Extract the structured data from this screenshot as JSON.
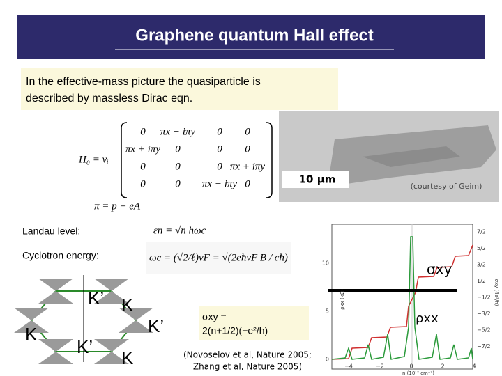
{
  "title": "Graphene quantum Hall effect",
  "intro": [
    "In the effective-mass picture the quasiparticle is",
    "described by massless Dirac eqn."
  ],
  "hamiltonian": {
    "lhs": "H₀ = vᵢ",
    "matrix": [
      [
        "0",
        "πx − iπy",
        "0",
        "0"
      ],
      [
        "πx + iπy",
        "0",
        "0",
        "0"
      ],
      [
        "0",
        "0",
        "0",
        "πx + iπy"
      ],
      [
        "0",
        "0",
        "πx − iπy",
        "0"
      ]
    ],
    "pi": "π = p + eA"
  },
  "landau_label": "Landau level:",
  "landau_eq": "εn = √n ħωc",
  "cyclotron_label": "Cyclotron energy:",
  "cyclotron_eq": "ωc = (√2/ℓ)vF = √(2eħvF B / cħ)",
  "image": {
    "scale": "10 µm",
    "credit": "(courtesy of Geim)"
  },
  "cones": [
    "K’",
    "K",
    "K",
    "K’",
    "K’",
    "K"
  ],
  "sigma_formula": [
    "σxy =",
    "2(n+1/2)(−e²/h)"
  ],
  "citation": [
    "(Novoselov et al, Nature 2005;",
    "Zhang et al, Nature 2005)"
  ],
  "plot": {
    "right_ticks": [
      "7/2",
      "5/2",
      "3/2",
      "1/2",
      "−1/2",
      "−3/2",
      "−5/2",
      "−7/2"
    ],
    "left_ticks": [
      "10",
      "5",
      "0"
    ],
    "x_ticks": [
      "−4",
      "−2",
      "0",
      "2",
      "4"
    ],
    "x_label": "n (10¹² cm⁻²)",
    "y_label": "ρxx (kΩ)",
    "y2_label": "σxy (4e²/h)",
    "sigma_label": "σxy",
    "rho_label": "ρxx"
  }
}
